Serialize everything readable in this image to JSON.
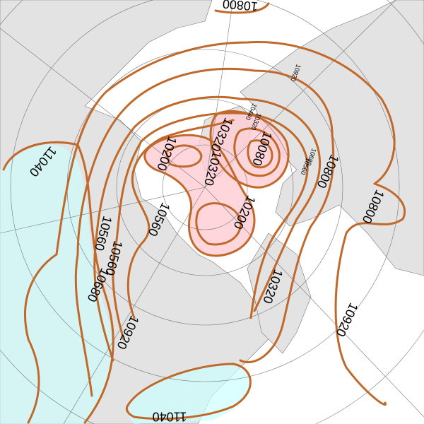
{
  "map": {
    "projection": "polar stereographic, north pole",
    "field": "geopotential height contours",
    "colors": {
      "contour": "#c0692a",
      "land": "#e3e3e3",
      "ocean": "#ffffff",
      "low_fill": "#ffd5da",
      "high_fill": "#ccffff"
    },
    "contour_labels": [
      {
        "text": "10800"
      },
      {
        "text": "11040"
      },
      {
        "text": "10200"
      },
      {
        "text": "10320"
      },
      {
        "text": "10320"
      },
      {
        "text": "10200"
      },
      {
        "text": "10080"
      },
      {
        "text": "10320"
      },
      {
        "text": "10440"
      },
      {
        "text": "10920"
      },
      {
        "text": "10680"
      },
      {
        "text": "10560"
      },
      {
        "text": "10800"
      },
      {
        "text": "10800"
      },
      {
        "text": "10560"
      },
      {
        "text": "10560"
      },
      {
        "text": "10560"
      },
      {
        "text": "10680"
      },
      {
        "text": "10920"
      },
      {
        "text": "10320"
      },
      {
        "text": "10920"
      },
      {
        "text": "11040"
      }
    ]
  }
}
